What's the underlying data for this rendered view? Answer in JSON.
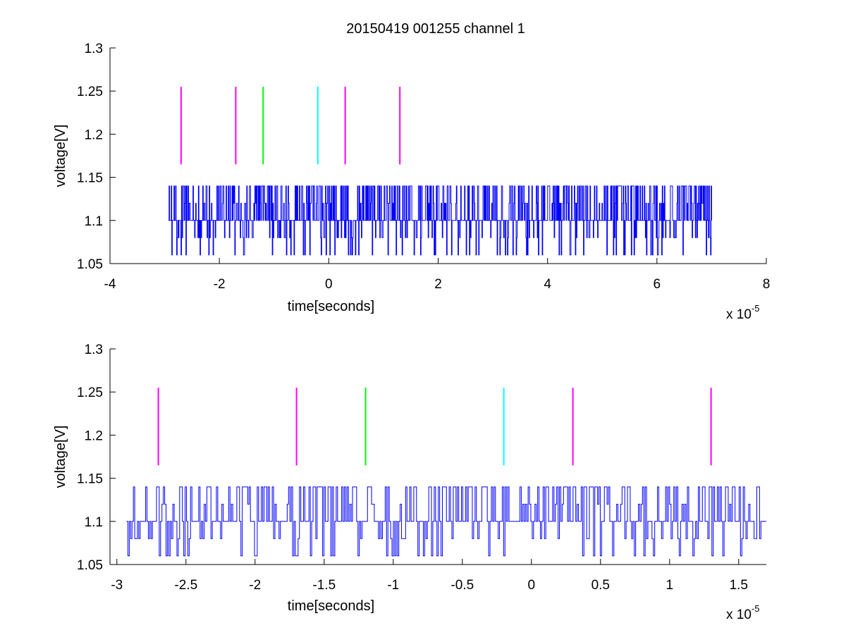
{
  "figure": {
    "title": "20150419 001255 channel 1"
  },
  "chart_data": [
    {
      "type": "line",
      "title": "20150419 001255 channel 1",
      "xlabel": "time[seconds]",
      "ylabel": "voltage[V]",
      "x_multiplier_label": "x 10",
      "x_multiplier_exponent": "-5",
      "xlim": [
        -4,
        8
      ],
      "ylim": [
        1.05,
        1.3
      ],
      "x_ticks": [
        "-4",
        "-2",
        "0",
        "2",
        "4",
        "6",
        "8"
      ],
      "y_ticks": [
        "1.05",
        "1.1",
        "1.15",
        "1.2",
        "1.25",
        "1.3"
      ],
      "grid": false,
      "signal": {
        "color": "#0000ff",
        "x_range": [
          -2.93,
          7.0
        ],
        "baseline": 1.1,
        "levels": [
          1.06,
          1.08,
          1.1,
          1.12,
          1.14
        ],
        "samples": 1000
      },
      "markers": [
        {
          "x": -2.7,
          "y_range": [
            1.165,
            1.255
          ],
          "color": "#ff00ff"
        },
        {
          "x": -1.7,
          "y_range": [
            1.165,
            1.255
          ],
          "color": "#ff00ff"
        },
        {
          "x": -1.2,
          "y_range": [
            1.165,
            1.255
          ],
          "color": "#00ff00"
        },
        {
          "x": -0.2,
          "y_range": [
            1.165,
            1.255
          ],
          "color": "#00ffff"
        },
        {
          "x": 0.3,
          "y_range": [
            1.165,
            1.255
          ],
          "color": "#ff00ff"
        },
        {
          "x": 1.3,
          "y_range": [
            1.165,
            1.255
          ],
          "color": "#ff00ff"
        }
      ]
    },
    {
      "type": "line",
      "title": "",
      "xlabel": "time[seconds]",
      "ylabel": "voltage[V]",
      "x_multiplier_label": "x 10",
      "x_multiplier_exponent": "-5",
      "xlim": [
        -3.05,
        1.7
      ],
      "ylim": [
        1.05,
        1.3
      ],
      "x_ticks": [
        "-3",
        "-2.5",
        "-2",
        "-1.5",
        "-1",
        "-0.5",
        "0",
        "0.5",
        "1",
        "1.5"
      ],
      "y_ticks": [
        "1.05",
        "1.1",
        "1.15",
        "1.2",
        "1.25",
        "1.3"
      ],
      "grid": false,
      "signal": {
        "color": "#0000ff",
        "x_range": [
          -2.93,
          1.7
        ],
        "baseline": 1.1,
        "levels": [
          1.06,
          1.08,
          1.1,
          1.12,
          1.14
        ],
        "samples": 470
      },
      "markers": [
        {
          "x": -2.7,
          "y_range": [
            1.165,
            1.255
          ],
          "color": "#ff00ff"
        },
        {
          "x": -1.7,
          "y_range": [
            1.165,
            1.255
          ],
          "color": "#ff00ff"
        },
        {
          "x": -1.2,
          "y_range": [
            1.165,
            1.255
          ],
          "color": "#00ff00"
        },
        {
          "x": -0.2,
          "y_range": [
            1.165,
            1.255
          ],
          "color": "#00ffff"
        },
        {
          "x": 0.3,
          "y_range": [
            1.165,
            1.255
          ],
          "color": "#ff00ff"
        },
        {
          "x": 1.3,
          "y_range": [
            1.165,
            1.255
          ],
          "color": "#ff00ff"
        }
      ]
    }
  ]
}
